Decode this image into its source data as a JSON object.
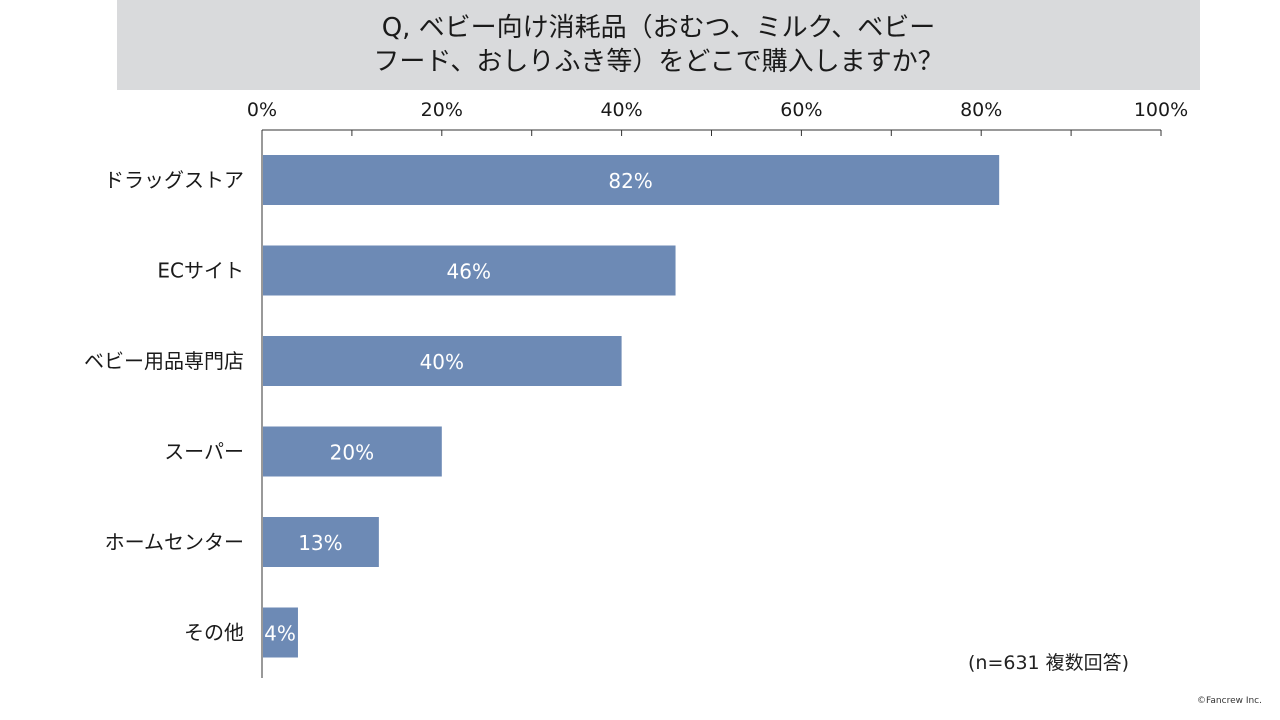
{
  "title": {
    "line1": "Q, ベビー向け消耗品（おむつ、ミルク、ベビー",
    "line2": "フード、おしりふき等）をどこで購入しますか？"
  },
  "note": "(n=631 複数回答)",
  "copyright": "©Fancrew Inc.",
  "colors": {
    "bar": "#6d8ab5",
    "axis": "#333333",
    "bar_label": "#ffffff"
  },
  "chart_data": {
    "type": "bar",
    "orientation": "horizontal",
    "categories": [
      "ドラッグストア",
      "ECサイト",
      "ベビー用品専門店",
      "スーパー",
      "ホームセンター",
      "その他"
    ],
    "values": [
      82,
      46,
      40,
      20,
      13,
      4
    ],
    "data_labels": [
      "82%",
      "46%",
      "40%",
      "20%",
      "13%",
      "4%"
    ],
    "xlim": [
      0,
      100
    ],
    "x_ticks": [
      0,
      20,
      40,
      60,
      80,
      100
    ],
    "x_tick_labels": [
      "0%",
      "20%",
      "40%",
      "60%",
      "80%",
      "100%"
    ],
    "x_axis_position": "top",
    "grid": false,
    "legend": "none"
  }
}
